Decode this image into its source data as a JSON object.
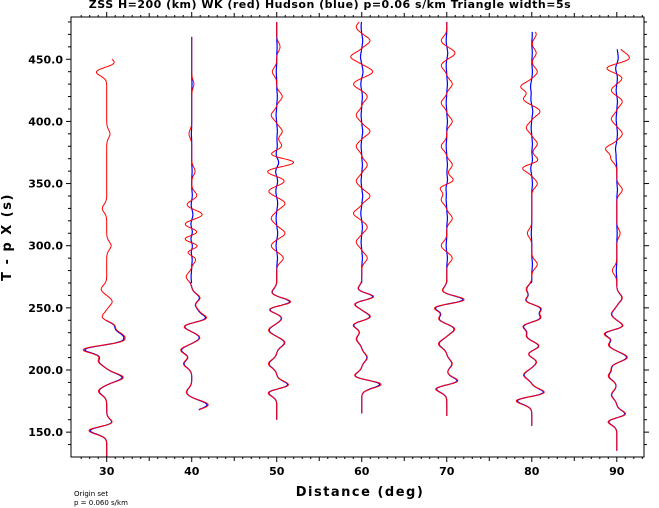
{
  "chart_data": {
    "type": "line",
    "title": "ZSS H=200 (km) WK (red) Hudson (blue) p=0.06 s/km Triangle width=5s",
    "xlabel": "Distance (deg)",
    "ylabel": "T - p X (s)",
    "xlim": [
      25.8,
      93.2
    ],
    "ylim": [
      130,
      484
    ],
    "x_ticks": [
      30,
      40,
      50,
      60,
      70,
      80,
      90
    ],
    "y_ticks": [
      150,
      200,
      250,
      300,
      350,
      400,
      450
    ],
    "x_tick_labels": [
      "30",
      "40",
      "50",
      "60",
      "70",
      "80",
      "90"
    ],
    "y_tick_labels": [
      "150.0",
      "200.0",
      "250.0",
      "300.0",
      "350.0",
      "400.0",
      "450.0"
    ],
    "grid": false,
    "legend": "none",
    "colors": {
      "wk": "#ff0000",
      "hudson": "#0000ff",
      "axes": "#000000"
    },
    "series": [
      {
        "distance": 30,
        "start": 130,
        "end": 450,
        "blue_end": 240,
        "lobes": [
          [
            152,
            -4
          ],
          [
            156,
            2
          ],
          [
            183,
            -1.5
          ],
          [
            194,
            3
          ],
          [
            207,
            -1.5
          ],
          [
            217,
            -5
          ],
          [
            222,
            3
          ],
          [
            228,
            2.5
          ],
          [
            236,
            1.5
          ],
          [
            242,
            -1
          ],
          [
            255,
            1
          ],
          [
            265,
            -1
          ],
          [
            300,
            0.8
          ],
          [
            330,
            -0.8
          ],
          [
            390,
            0.6
          ],
          [
            440,
            -2
          ],
          [
            447,
            1.5
          ]
        ]
      },
      {
        "distance": 40,
        "start": 168,
        "end": 468,
        "blue_end": 468,
        "lobes": [
          [
            172,
            3
          ],
          [
            182,
            -1
          ],
          [
            205,
            -1.5
          ],
          [
            216,
            -2
          ],
          [
            226,
            1.5
          ],
          [
            236,
            -2
          ],
          [
            241,
            3
          ],
          [
            248,
            1
          ],
          [
            258,
            1.5
          ],
          [
            275,
            -1
          ],
          [
            290,
            1
          ],
          [
            295,
            -1.5
          ],
          [
            300,
            2
          ],
          [
            305,
            -2
          ],
          [
            311,
            1.5
          ],
          [
            317,
            -1.5
          ],
          [
            325,
            2
          ],
          [
            333,
            -1
          ],
          [
            340,
            1
          ],
          [
            360,
            0.6
          ],
          [
            390,
            -0.5
          ],
          [
            430,
            0.4
          ]
        ]
      },
      {
        "distance": 50,
        "start": 160,
        "end": 480,
        "blue_end": 480,
        "lobes": [
          [
            183,
            -2.5
          ],
          [
            187,
            3
          ],
          [
            205,
            -1.5
          ],
          [
            222,
            1.5
          ],
          [
            232,
            -1.5
          ],
          [
            242,
            1
          ],
          [
            250,
            -2.5
          ],
          [
            254,
            3.5
          ],
          [
            262,
            -1
          ],
          [
            290,
            1.2
          ],
          [
            300,
            -1
          ],
          [
            310,
            1.5
          ],
          [
            322,
            -1
          ],
          [
            334,
            1.5
          ],
          [
            344,
            -1.5
          ],
          [
            352,
            1.5
          ],
          [
            360,
            -2
          ],
          [
            367,
            3.5
          ],
          [
            373,
            -1.5
          ],
          [
            380,
            1
          ],
          [
            392,
            1
          ],
          [
            405,
            -1
          ],
          [
            420,
            1
          ],
          [
            440,
            -0.8
          ],
          [
            460,
            0.6
          ]
        ]
      },
      {
        "distance": 60,
        "start": 165,
        "end": 480,
        "blue_end": 480,
        "lobes": [
          [
            189,
            4
          ],
          [
            194,
            -2
          ],
          [
            210,
            1
          ],
          [
            225,
            -1
          ],
          [
            237,
            -2
          ],
          [
            242,
            2
          ],
          [
            255,
            -3
          ],
          [
            258,
            4
          ],
          [
            264,
            -1
          ],
          [
            290,
            1
          ],
          [
            303,
            -1
          ],
          [
            315,
            1
          ],
          [
            326,
            -1.5
          ],
          [
            340,
            1.5
          ],
          [
            352,
            -1
          ],
          [
            365,
            1
          ],
          [
            380,
            -1
          ],
          [
            392,
            1.5
          ],
          [
            405,
            -1
          ],
          [
            420,
            1
          ],
          [
            430,
            -1.5
          ],
          [
            440,
            2
          ],
          [
            452,
            -2
          ],
          [
            465,
            1.5
          ],
          [
            476,
            -1
          ]
        ]
      },
      {
        "distance": 70,
        "start": 163,
        "end": 480,
        "blue_end": 480,
        "lobes": [
          [
            186,
            -3
          ],
          [
            190,
            3
          ],
          [
            205,
            1
          ],
          [
            221,
            -1.5
          ],
          [
            233,
            1.5
          ],
          [
            241,
            -1.5
          ],
          [
            251,
            -3
          ],
          [
            256,
            4
          ],
          [
            263,
            -1
          ],
          [
            290,
            1
          ],
          [
            300,
            -1
          ],
          [
            322,
            1
          ],
          [
            337,
            -1
          ],
          [
            347,
            -1.5
          ],
          [
            352,
            1.5
          ],
          [
            365,
            1
          ],
          [
            380,
            -1
          ],
          [
            400,
            1
          ],
          [
            415,
            -1
          ],
          [
            430,
            1
          ],
          [
            445,
            -1
          ],
          [
            455,
            1.5
          ],
          [
            465,
            -1
          ]
        ]
      },
      {
        "distance": 80,
        "start": 155,
        "end": 472,
        "blue_end": 472,
        "lobes": [
          [
            176,
            -3.5
          ],
          [
            181,
            3
          ],
          [
            196,
            -1.5
          ],
          [
            207,
            1
          ],
          [
            213,
            -1
          ],
          [
            219,
            1.5
          ],
          [
            227,
            -1
          ],
          [
            236,
            -2
          ],
          [
            241,
            2
          ],
          [
            250,
            2
          ],
          [
            255,
            -1.5
          ],
          [
            265,
            -1
          ],
          [
            285,
            1
          ],
          [
            310,
            -0.8
          ],
          [
            350,
            1
          ],
          [
            363,
            -2
          ],
          [
            368,
            1.5
          ],
          [
            382,
            1
          ],
          [
            395,
            -1
          ],
          [
            408,
            1.5
          ],
          [
            418,
            -1.5
          ],
          [
            428,
            -2
          ],
          [
            440,
            1
          ],
          [
            455,
            0.8
          ],
          [
            470,
            0.8
          ]
        ]
      },
      {
        "distance": 90,
        "start": 135,
        "end": 458,
        "blue_end": 458,
        "lobes": [
          [
            160,
            -3
          ],
          [
            163,
            3
          ],
          [
            180,
            -1
          ],
          [
            195,
            -1.5
          ],
          [
            203,
            -1
          ],
          [
            210,
            2
          ],
          [
            220,
            -1.5
          ],
          [
            230,
            -3
          ],
          [
            234,
            2
          ],
          [
            245,
            -1
          ],
          [
            258,
            1
          ],
          [
            280,
            -0.8
          ],
          [
            310,
            0.6
          ],
          [
            345,
            1
          ],
          [
            370,
            -1
          ],
          [
            378,
            -2
          ],
          [
            390,
            1
          ],
          [
            402,
            -1
          ],
          [
            416,
            1
          ],
          [
            425,
            -1
          ],
          [
            435,
            1
          ],
          [
            443,
            -2
          ],
          [
            450,
            2
          ],
          [
            455,
            1
          ]
        ]
      }
    ]
  },
  "footnote": {
    "line1": "Origin set",
    "line2": "p = 0.060 s/km"
  }
}
